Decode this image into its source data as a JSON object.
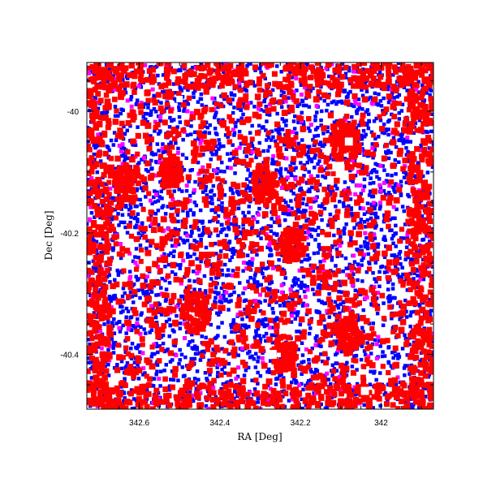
{
  "chart_data": {
    "type": "scatter",
    "title": "",
    "xlabel": "RA [Deg]",
    "ylabel": "Dec [Deg]",
    "x_reversed": true,
    "xlim": [
      342.73,
      341.87
    ],
    "ylim": [
      -40.49,
      -39.92
    ],
    "xticks": [
      342.6,
      342.4,
      342.2,
      342
    ],
    "xtick_labels": [
      "342.6",
      "342.4",
      "342.2",
      "342"
    ],
    "yticks": [
      -40,
      -40.2,
      -40.4
    ],
    "ytick_labels": [
      "-40",
      "-40.2",
      "-40.4"
    ],
    "grid": false,
    "legend": "none",
    "series_colors": {
      "blue_points": "#0000ff",
      "magenta_points": "#ff00ff",
      "red_squares": "#ff0000"
    },
    "density": {
      "blue_points": 3400,
      "magenta_points": 380,
      "red_squares_edge": 900,
      "red_squares_interior": 1300
    },
    "red_clusters": [
      {
        "ra": 342.63,
        "dec": -40.12,
        "r": 0.035
      },
      {
        "ra": 342.46,
        "dec": -40.33,
        "r": 0.035
      },
      {
        "ra": 342.29,
        "dec": -40.12,
        "r": 0.03
      },
      {
        "ra": 342.22,
        "dec": -40.22,
        "r": 0.03
      },
      {
        "ra": 342.09,
        "dec": -40.05,
        "r": 0.035
      },
      {
        "ra": 342.08,
        "dec": -40.37,
        "r": 0.03
      },
      {
        "ra": 342.24,
        "dec": -40.4,
        "r": 0.03
      },
      {
        "ra": 342.52,
        "dec": -40.1,
        "r": 0.025
      }
    ],
    "white_holes": [
      {
        "ra": 342.08,
        "dec": -40.05,
        "r": 0.01
      },
      {
        "ra": 342.27,
        "dec": -40.4,
        "r": 0.011
      },
      {
        "ra": 342.5,
        "dec": -39.98,
        "r": 0.008
      },
      {
        "ra": 342.04,
        "dec": -40.46,
        "r": 0.01
      }
    ]
  }
}
